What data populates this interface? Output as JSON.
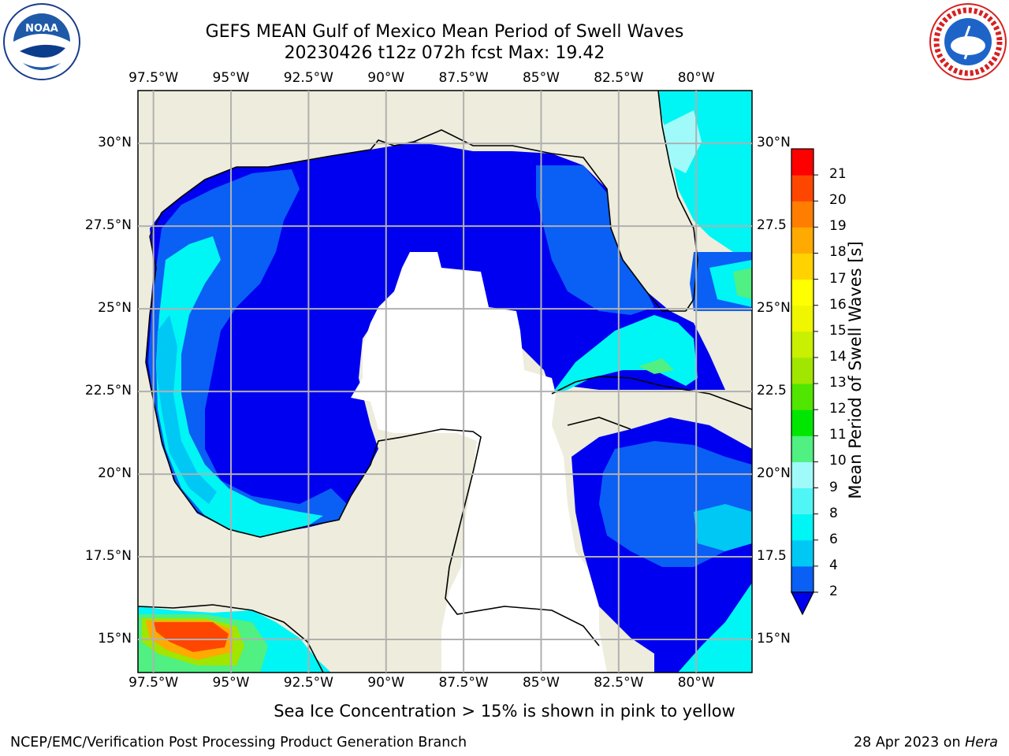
{
  "header": {
    "title_line1": "GEFS MEAN Gulf of Mexico Mean Period of Swell Waves",
    "title_line2": "20230426 t12z 072h fcst   Max: 19.42"
  },
  "logos": {
    "left": {
      "name": "NOAA",
      "ring_text": "NATIONAL OCEANIC AND ATMOSPHERIC ADMINISTRATION · U.S. DEPARTMENT OF COMMERCE"
    },
    "right": {
      "ring_text": "NATIONAL WEATHER SERVICE"
    }
  },
  "map": {
    "lon_labels": [
      "97.5°W",
      "95°W",
      "92.5°W",
      "90°W",
      "87.5°W",
      "85°W",
      "82.5°W",
      "80°W"
    ],
    "lon_values": [
      -97.5,
      -95,
      -92.5,
      -90,
      -87.5,
      -85,
      -82.5,
      -80
    ],
    "lat_labels_left": [
      "30°N",
      "27.5°N",
      "25°N",
      "22.5°N",
      "20°N",
      "17.5°N",
      "15°N"
    ],
    "lat_labels_right": [
      "30°N",
      "27.5",
      "25°N",
      "22.5",
      "20°N",
      "17.5",
      "15°N"
    ],
    "lat_values": [
      30,
      27.5,
      25,
      22.5,
      20,
      17.5,
      15
    ],
    "extent": {
      "lon_min": -98,
      "lon_max": -78.2,
      "lat_min": 14,
      "lat_max": 31.6
    },
    "colors": {
      "land": "#eeecdc",
      "nodata": "#ffffff",
      "grid": "#b0b0b0"
    }
  },
  "colorbar": {
    "label": "Mean Period of Swell Waves [s]",
    "ticks": [
      "2",
      "4",
      "6",
      "8",
      "9",
      "10",
      "11",
      "12",
      "13",
      "14",
      "15",
      "16",
      "17",
      "18",
      "19",
      "20",
      "21"
    ],
    "colors": [
      "#0a5ff5",
      "#00c8f5",
      "#00f5f5",
      "#50f5f5",
      "#a0fafa",
      "#50f082",
      "#00e600",
      "#50e600",
      "#a0e600",
      "#c8f000",
      "#f0f500",
      "#ffff00",
      "#ffd200",
      "#ffaa00",
      "#ff7d00",
      "#ff4600",
      "#ff0000"
    ],
    "under_color": "#0000f0"
  },
  "footer": {
    "note": "Sea Ice Concentration > 15% is shown in pink to yellow",
    "left": "NCEP/EMC/Verification Post Processing Product Generation Branch",
    "right_prefix": "28 Apr 2023 on ",
    "right_machine": "Hera"
  }
}
